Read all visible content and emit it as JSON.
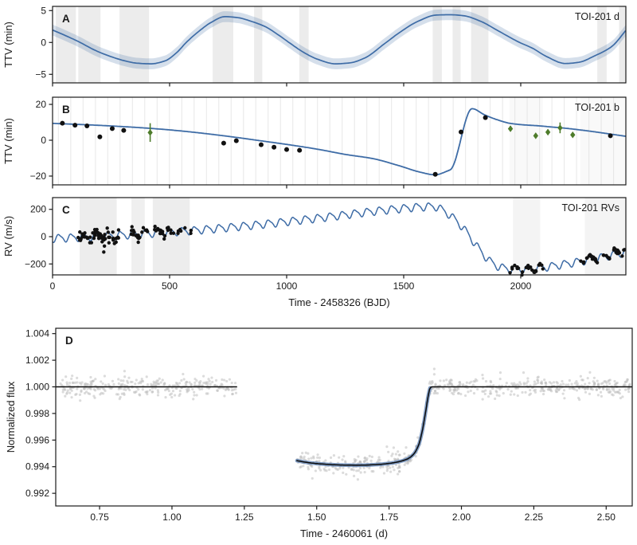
{
  "figure_title": "",
  "chart_data": {
    "type": "multi-panel line+scatter (TTV, RV and transit light curve)",
    "shared_x_axis": {
      "label": "Time - 2458326 (BJD)",
      "xlim": [
        0,
        2449
      ],
      "ticks": [
        0,
        500,
        1000,
        1500,
        2000
      ]
    },
    "colors": {
      "model_blue": "#3e6ca6",
      "band_blue": "#3e6ca6",
      "band_opacity": 0.22,
      "transit_band_blue": "#5d82b4",
      "point_black": "#111111",
      "point_green": "#4e7c2b",
      "stripe_gray": "#dcdcdc",
      "scatter_gray": "#b9b9b9",
      "frame": "#1a1a1a",
      "model_black": "#0a0a0a"
    },
    "panels": [
      {
        "id": "A",
        "letter": "A",
        "corner_label": "TOI-201 d",
        "ylabel": "TTV (min)",
        "box": {
          "l": 66,
          "r": 786,
          "t": 8,
          "b": 104
        },
        "xlim": [
          0,
          2449
        ],
        "ylim": [
          -6.34,
          5.66
        ],
        "yticks": [
          {
            "v": 5,
            "t": "5"
          },
          {
            "v": 0,
            "t": "0"
          },
          {
            "v": -5,
            "t": "−5"
          }
        ],
        "xticks": [
          {
            "v": 0,
            "t": ""
          },
          {
            "v": 500,
            "t": ""
          },
          {
            "v": 1000,
            "t": ""
          },
          {
            "v": 1500,
            "t": ""
          },
          {
            "v": 2000,
            "t": ""
          }
        ],
        "stripes": [
          [
            14,
            100
          ],
          [
            110,
            205
          ],
          [
            286,
            412
          ],
          [
            684,
            772
          ],
          [
            861,
            896
          ],
          [
            1054,
            1094
          ],
          [
            1624,
            1663
          ],
          [
            1709,
            1743
          ],
          [
            1788,
            1862
          ],
          [
            2327,
            2367
          ],
          [
            2420,
            2449
          ]
        ],
        "stripe_opacity": 0.55,
        "band_halfwidth_min": 0.85,
        "model_anchors": [
          [
            0,
            1.95
          ],
          [
            60,
            1.0
          ],
          [
            118,
            0
          ],
          [
            180,
            -1.2
          ],
          [
            240,
            -2.1
          ],
          [
            300,
            -2.8
          ],
          [
            360,
            -3.25
          ],
          [
            420,
            -3.35
          ],
          [
            480,
            -2.9
          ],
          [
            530,
            -1.6
          ],
          [
            571,
            0
          ],
          [
            620,
            1.6
          ],
          [
            680,
            3.2
          ],
          [
            735,
            4.05
          ],
          [
            790,
            3.9
          ],
          [
            850,
            3.3
          ],
          [
            913,
            2.4
          ],
          [
            960,
            1.3
          ],
          [
            1010,
            0
          ],
          [
            1070,
            -1.5
          ],
          [
            1130,
            -2.6
          ],
          [
            1208,
            -3.35
          ],
          [
            1270,
            -3.2
          ],
          [
            1330,
            -2.5
          ],
          [
            1425,
            0
          ],
          [
            1480,
            1.5
          ],
          [
            1560,
            3.3
          ],
          [
            1640,
            4.3
          ],
          [
            1700,
            4.35
          ],
          [
            1755,
            4.2
          ],
          [
            1830,
            3.3
          ],
          [
            1900,
            1.9
          ],
          [
            1995,
            0
          ],
          [
            2050,
            -0.9
          ],
          [
            2110,
            -2.2
          ],
          [
            2190,
            -3.3
          ],
          [
            2250,
            -3.1
          ],
          [
            2310,
            -2.2
          ],
          [
            2390,
            -0.6
          ],
          [
            2449,
            1.9
          ]
        ]
      },
      {
        "id": "B",
        "letter": "B",
        "corner_label": "TOI-201 b",
        "ylabel": "TTV (min)",
        "box": {
          "l": 66,
          "r": 786,
          "t": 122,
          "b": 232
        },
        "xlim": [
          0,
          2449
        ],
        "ylim": [
          -24.9,
          24.0
        ],
        "yticks": [
          {
            "v": 20,
            "t": "20"
          },
          {
            "v": 0,
            "t": "0"
          },
          {
            "v": -20,
            "t": "−20"
          }
        ],
        "xticks": [
          {
            "v": 0,
            "t": ""
          },
          {
            "v": 500,
            "t": ""
          },
          {
            "v": 1000,
            "t": ""
          },
          {
            "v": 1500,
            "t": ""
          },
          {
            "v": 2000,
            "t": ""
          }
        ],
        "epoch_lines": {
          "start": 25,
          "step": 52.7,
          "end": 2449
        },
        "wide_stripes": [
          [
            1952,
            2095
          ],
          [
            2255,
            2445
          ]
        ],
        "wide_stripe_opacity": 0.18,
        "model_anchors": [
          [
            0,
            9.4
          ],
          [
            150,
            8.6
          ],
          [
            300,
            7.6
          ],
          [
            450,
            6.3
          ],
          [
            570,
            4.9
          ],
          [
            730,
            2.5
          ],
          [
            900,
            -0.5
          ],
          [
            1050,
            -3.3
          ],
          [
            1140,
            -5.2
          ],
          [
            1250,
            -7.9
          ],
          [
            1370,
            -10.3
          ],
          [
            1480,
            -14.2
          ],
          [
            1570,
            -17.8
          ],
          [
            1635,
            -19.3
          ],
          [
            1686,
            -17.2
          ],
          [
            1700,
            -16.4
          ],
          [
            1792,
            17.6
          ],
          [
            1845,
            14.2
          ],
          [
            1900,
            11.4
          ],
          [
            1955,
            9.4
          ],
          [
            2010,
            8.6
          ],
          [
            2070,
            8.1
          ],
          [
            2130,
            7.4
          ],
          [
            2190,
            6.7
          ],
          [
            2250,
            5.8
          ],
          [
            2310,
            4.8
          ],
          [
            2380,
            3.5
          ],
          [
            2449,
            2.2
          ]
        ],
        "black_points": [
          [
            42,
            9.5
          ],
          [
            96,
            8.4
          ],
          [
            147,
            8.0
          ],
          [
            202,
            1.9
          ],
          [
            255,
            6.5
          ],
          [
            304,
            5.5
          ],
          [
            731,
            -1.6
          ],
          [
            785,
            -0.3
          ],
          [
            891,
            -2.5
          ],
          [
            946,
            -3.9
          ],
          [
            1000,
            -5.2
          ],
          [
            1055,
            -5.6
          ],
          [
            1635,
            -19.0
          ],
          [
            1745,
            4.6
          ],
          [
            1849,
            12.6
          ],
          [
            2383,
            2.5
          ]
        ],
        "green_points": [
          [
            417,
            4.3,
            5.2
          ],
          [
            1956,
            6.4,
            1.5
          ],
          [
            2064,
            2.5,
            1.2
          ],
          [
            2116,
            4.5,
            1.5
          ],
          [
            2168,
            6.9,
            3.0
          ],
          [
            2222,
            3.0,
            1.2
          ]
        ]
      },
      {
        "id": "C",
        "letter": "C",
        "corner_label": "TOI-201 RVs",
        "ylabel": "RV (m/s)",
        "xlabel": "Time - 2458326 (BJD)",
        "box": {
          "l": 66,
          "r": 786,
          "t": 248,
          "b": 345
        },
        "xlim": [
          0,
          2449
        ],
        "ylim": [
          -280,
          286
        ],
        "yticks": [
          {
            "v": 200,
            "t": "200"
          },
          {
            "v": 0,
            "t": "0"
          },
          {
            "v": -200,
            "t": "−200"
          }
        ],
        "xticks": [
          {
            "v": 0,
            "t": "0"
          },
          {
            "v": 500,
            "t": "500"
          },
          {
            "v": 1000,
            "t": "1000"
          },
          {
            "v": 1500,
            "t": "1500"
          },
          {
            "v": 2000,
            "t": "2000"
          }
        ],
        "stripes": [
          [
            116,
            274,
            0.5
          ],
          [
            337,
            394,
            0.45
          ],
          [
            428,
            586,
            0.5
          ],
          [
            1967,
            2083,
            0.32
          ],
          [
            2274,
            2449,
            0.32
          ]
        ],
        "trend_anchors": [
          [
            0,
            -12
          ],
          [
            150,
            -2
          ],
          [
            300,
            12
          ],
          [
            450,
            28
          ],
          [
            600,
            46
          ],
          [
            750,
            68
          ],
          [
            900,
            92
          ],
          [
            1050,
            120
          ],
          [
            1200,
            150
          ],
          [
            1350,
            182
          ],
          [
            1480,
            205
          ],
          [
            1570,
            218
          ],
          [
            1630,
            221
          ],
          [
            1675,
            185
          ],
          [
            1715,
            132
          ],
          [
            1755,
            62
          ],
          [
            1795,
            -28
          ],
          [
            1835,
            -118
          ],
          [
            1875,
            -188
          ],
          [
            1915,
            -224
          ],
          [
            1970,
            -239
          ],
          [
            2030,
            -237
          ],
          [
            2100,
            -224
          ],
          [
            2200,
            -197
          ],
          [
            2300,
            -167
          ],
          [
            2400,
            -131
          ],
          [
            2449,
            -113
          ]
        ],
        "wiggle": {
          "period": 52.7,
          "amp": 26,
          "amp2": 7,
          "phase": -1.81
        },
        "rv_clusters": [
          {
            "t0": 105,
            "t1": 286,
            "n": 58,
            "sigma": 24,
            "bias": 0,
            "seed": 11
          },
          {
            "t0": 335,
            "t1": 592,
            "n": 46,
            "sigma": 16,
            "bias": 8,
            "seed": 22
          },
          {
            "t0": 1952,
            "t1": 2095,
            "n": 26,
            "sigma": 8,
            "bias": 0,
            "seed": 33
          },
          {
            "t0": 2255,
            "t1": 2445,
            "n": 36,
            "sigma": 9,
            "bias": 10,
            "seed": 44
          }
        ]
      },
      {
        "id": "D",
        "letter": "D",
        "corner_label": "",
        "ylabel": "Normalized flux",
        "xlabel": "Time - 2460061 (d)",
        "box": {
          "l": 70,
          "r": 794,
          "t": 412,
          "b": 635
        },
        "xlim": [
          0.5985,
          2.59
        ],
        "ylim": [
          0.99105,
          1.0044
        ],
        "yticks": [
          {
            "v": 1.004,
            "t": "1.004"
          },
          {
            "v": 1.002,
            "t": "1.002"
          },
          {
            "v": 1.0,
            "t": "1.000"
          },
          {
            "v": 0.998,
            "t": "0.998"
          },
          {
            "v": 0.996,
            "t": "0.996"
          },
          {
            "v": 0.994,
            "t": "0.994"
          },
          {
            "v": 0.992,
            "t": "0.992"
          }
        ],
        "xticks": [
          {
            "v": 0.75,
            "t": "0.75"
          },
          {
            "v": 1.0,
            "t": "1.00"
          },
          {
            "v": 1.25,
            "t": "1.25"
          },
          {
            "v": 1.5,
            "t": "1.50"
          },
          {
            "v": 1.75,
            "t": "1.75"
          },
          {
            "v": 2.0,
            "t": "2.00"
          },
          {
            "v": 2.25,
            "t": "2.25"
          },
          {
            "v": 2.5,
            "t": "2.50"
          }
        ],
        "model_seg1": [
          [
            0.5985,
            1.0
          ],
          [
            1.225,
            1.0
          ]
        ],
        "model_seg2": [
          [
            1.43,
            0.99446
          ],
          [
            1.47,
            0.99431
          ],
          [
            1.52,
            0.9942
          ],
          [
            1.58,
            0.99413
          ],
          [
            1.64,
            0.99411
          ],
          [
            1.7,
            0.99415
          ],
          [
            1.75,
            0.99425
          ],
          [
            1.79,
            0.99441
          ],
          [
            1.815,
            0.9946
          ],
          [
            1.835,
            0.99495
          ],
          [
            1.852,
            0.99562
          ],
          [
            1.866,
            0.99682
          ],
          [
            1.877,
            0.99822
          ],
          [
            1.886,
            0.99942
          ],
          [
            1.892,
            0.99992
          ],
          [
            1.897,
            1.0
          ],
          [
            2.59,
            1.0
          ]
        ],
        "transit_band": {
          "t0": 1.432,
          "t1": 1.895
        },
        "flux_scatter": [
          {
            "t0": 0.603,
            "t1": 1.222,
            "n": 300,
            "sigma": 0.00037,
            "seed": 55
          },
          {
            "t0": 1.432,
            "t1": 2.585,
            "n": 560,
            "sigma": 0.00037,
            "seed": 66
          }
        ]
      }
    ]
  }
}
